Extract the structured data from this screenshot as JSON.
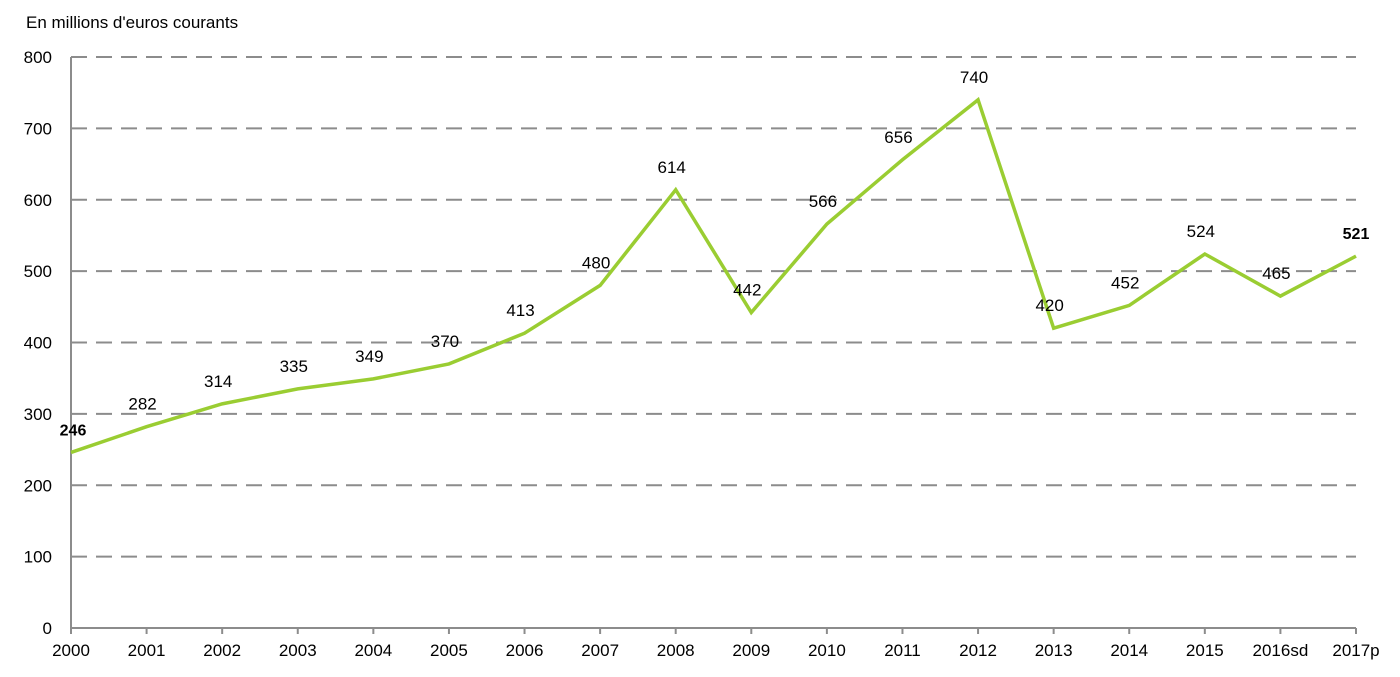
{
  "chart_data": {
    "type": "line",
    "title": "",
    "ylabel": "En millions d'euros courants",
    "xlabel": "",
    "categories": [
      "2000",
      "2001",
      "2002",
      "2003",
      "2004",
      "2005",
      "2006",
      "2007",
      "2008",
      "2009",
      "2010",
      "2011",
      "2012",
      "2013",
      "2014",
      "2015",
      "2016sd",
      "2017p"
    ],
    "series": [
      {
        "name": "",
        "values": [
          246,
          282,
          314,
          335,
          349,
          370,
          413,
          480,
          614,
          442,
          566,
          656,
          740,
          420,
          452,
          524,
          465,
          521
        ]
      }
    ],
    "data_labels": [
      "246",
      "282",
      "314",
      "335",
      "349",
      "370",
      "413",
      "480",
      "614",
      "442",
      "566",
      "656",
      "740",
      "420",
      "452",
      "524",
      "465",
      "521"
    ],
    "bold_labels": [
      0,
      17
    ],
    "ylim": [
      0,
      800
    ],
    "yticks": [
      "0",
      "100",
      "200",
      "300",
      "400",
      "500",
      "600",
      "700",
      "800"
    ],
    "grid": true,
    "line_color": "#9ACD32",
    "grid_color": "#8c8c8c"
  }
}
